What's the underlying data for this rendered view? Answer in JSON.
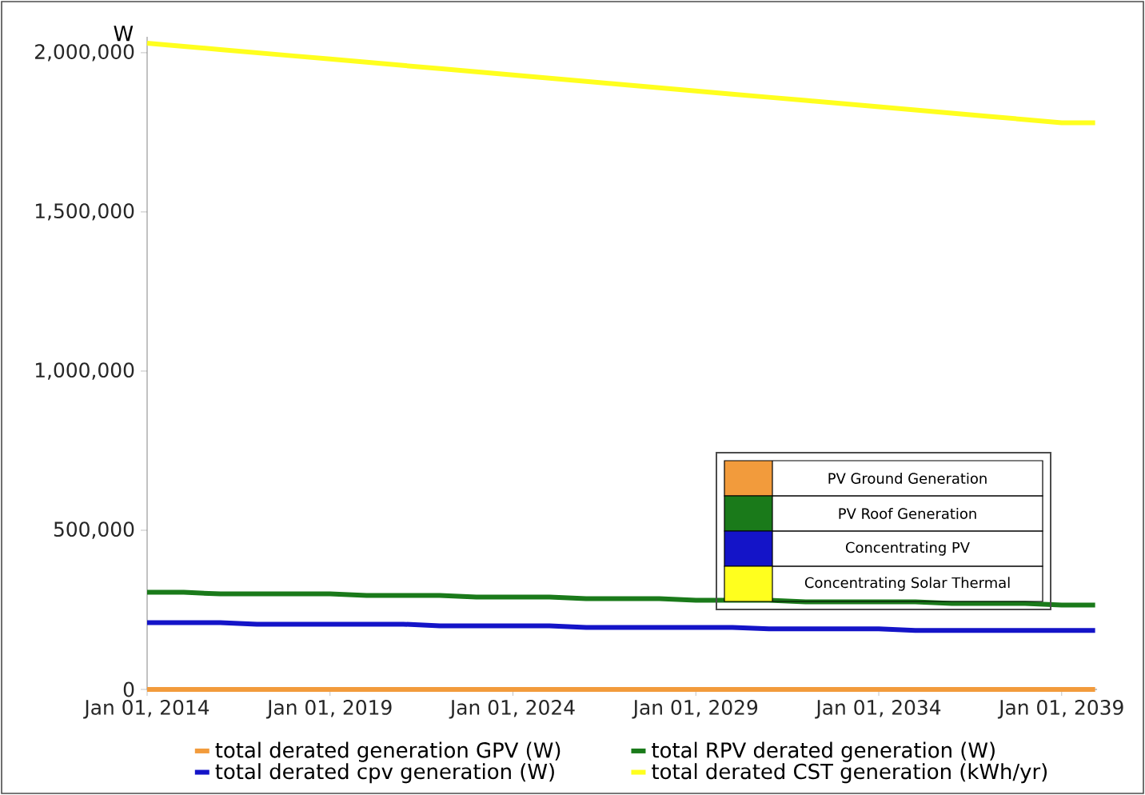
{
  "chart_data": {
    "type": "line",
    "ylabel": "W",
    "x": [
      "2014-01-01",
      "2015-01-01",
      "2016-01-01",
      "2017-01-01",
      "2018-01-01",
      "2019-01-01",
      "2020-01-01",
      "2021-01-01",
      "2022-01-01",
      "2023-01-01",
      "2024-01-01",
      "2025-01-01",
      "2026-01-01",
      "2027-01-01",
      "2028-01-01",
      "2029-01-01",
      "2030-01-01",
      "2031-01-01",
      "2032-01-01",
      "2033-01-01",
      "2034-01-01",
      "2035-01-01",
      "2036-01-01",
      "2037-01-01",
      "2038-01-01",
      "2039-01-01",
      "2039-12-01"
    ],
    "series": [
      {
        "name": "total derated generation GPV (W)",
        "color": "#f29b3c",
        "values": [
          0,
          0,
          0,
          0,
          0,
          0,
          0,
          0,
          0,
          0,
          0,
          0,
          0,
          0,
          0,
          0,
          0,
          0,
          0,
          0,
          0,
          0,
          0,
          0,
          0,
          0,
          0
        ]
      },
      {
        "name": "total RPV derated generation (W)",
        "color": "#1a7a1a",
        "values": [
          305000,
          305000,
          300000,
          300000,
          300000,
          300000,
          295000,
          295000,
          295000,
          290000,
          290000,
          290000,
          285000,
          285000,
          285000,
          280000,
          280000,
          280000,
          275000,
          275000,
          275000,
          275000,
          270000,
          270000,
          270000,
          265000,
          265000
        ]
      },
      {
        "name": "total derated cpv generation (W)",
        "color": "#1414c8",
        "values": [
          210000,
          210000,
          210000,
          205000,
          205000,
          205000,
          205000,
          205000,
          200000,
          200000,
          200000,
          200000,
          195000,
          195000,
          195000,
          195000,
          195000,
          190000,
          190000,
          190000,
          190000,
          185000,
          185000,
          185000,
          185000,
          185000,
          185000
        ]
      },
      {
        "name": "total derated CST generation (kWh/yr)",
        "color": "#ffff1e",
        "values": [
          2030000,
          2020000,
          2010000,
          2000000,
          1990000,
          1980000,
          1970000,
          1960000,
          1950000,
          1940000,
          1930000,
          1920000,
          1910000,
          1900000,
          1890000,
          1880000,
          1870000,
          1860000,
          1850000,
          1840000,
          1830000,
          1820000,
          1810000,
          1800000,
          1790000,
          1780000,
          1780000
        ]
      }
    ],
    "xlim": [
      "2014-01-01",
      "2039-12-20"
    ],
    "xticks": [
      {
        "value": "2014-01-01",
        "label": "Jan 01, 2014"
      },
      {
        "value": "2019-01-01",
        "label": "Jan 01, 2019"
      },
      {
        "value": "2024-01-01",
        "label": "Jan 01, 2024"
      },
      {
        "value": "2029-01-01",
        "label": "Jan 01, 2029"
      },
      {
        "value": "2034-01-01",
        "label": "Jan 01, 2034"
      },
      {
        "value": "2039-01-01",
        "label": "Jan 01, 2039"
      }
    ],
    "ylim": [
      0,
      2050000
    ],
    "yticks": [
      {
        "value": 0,
        "label": "0"
      },
      {
        "value": 500000,
        "label": "500,000"
      },
      {
        "value": 1000000,
        "label": "1,000,000"
      },
      {
        "value": 1500000,
        "label": "1,500,000"
      },
      {
        "value": 2000000,
        "label": "2,000,000"
      }
    ],
    "grid": false,
    "legend": "bottom",
    "marker": "none",
    "line_style": "solid",
    "annotations": [
      "PV Ground Generation",
      "PV Roof Generation",
      "Concentrating PV",
      "Concentrating Solar Thermal"
    ]
  }
}
